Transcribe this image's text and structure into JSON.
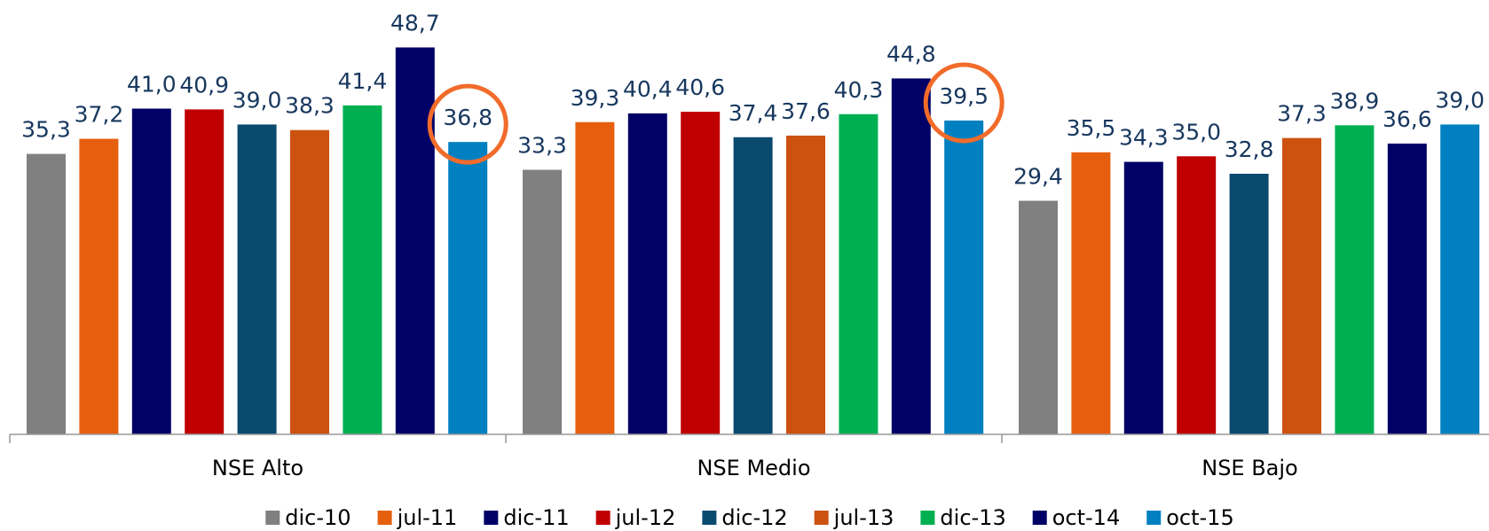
{
  "chart_data": {
    "type": "bar",
    "categories": [
      "NSE Alto",
      "NSE Medio",
      "NSE Bajo"
    ],
    "series": [
      {
        "name": "dic-10",
        "color": "#808080",
        "values": [
          35.3,
          33.3,
          29.4
        ],
        "value_labels": [
          "35,3",
          "33,3",
          "29,4"
        ]
      },
      {
        "name": "jul-11",
        "color": "#e65f0e",
        "values": [
          37.2,
          39.3,
          35.5
        ],
        "value_labels": [
          "37,2",
          "39,3",
          "35,5"
        ]
      },
      {
        "name": "dic-11",
        "color": "#000066",
        "values": [
          41.0,
          40.4,
          34.3
        ],
        "value_labels": [
          "41,0",
          "40,4",
          "34,3"
        ]
      },
      {
        "name": "jul-12",
        "color": "#c00000",
        "values": [
          40.9,
          40.6,
          35.0
        ],
        "value_labels": [
          "40,9",
          "40,6",
          "35,0"
        ]
      },
      {
        "name": "dic-12",
        "color": "#0b4a6f",
        "values": [
          39.0,
          37.4,
          32.8
        ],
        "value_labels": [
          "39,0",
          "37,4",
          "32,8"
        ]
      },
      {
        "name": "jul-13",
        "color": "#cc5210",
        "values": [
          38.3,
          37.6,
          37.3
        ],
        "value_labels": [
          "38,3",
          "37,6",
          "37,3"
        ]
      },
      {
        "name": "dic-13",
        "color": "#00b050",
        "values": [
          41.4,
          40.3,
          38.9
        ],
        "value_labels": [
          "41,4",
          "40,3",
          "38,9"
        ]
      },
      {
        "name": "oct-14",
        "color": "#000066",
        "values": [
          48.7,
          44.8,
          36.6
        ],
        "value_labels": [
          "48,7",
          "44,8",
          "36,6"
        ]
      },
      {
        "name": "oct-15",
        "color": "#0080c0",
        "values": [
          36.8,
          39.5,
          39.0
        ],
        "value_labels": [
          "36,8",
          "39,5",
          "39,0"
        ]
      }
    ],
    "ylim": [
      0,
      54
    ]
  }
}
